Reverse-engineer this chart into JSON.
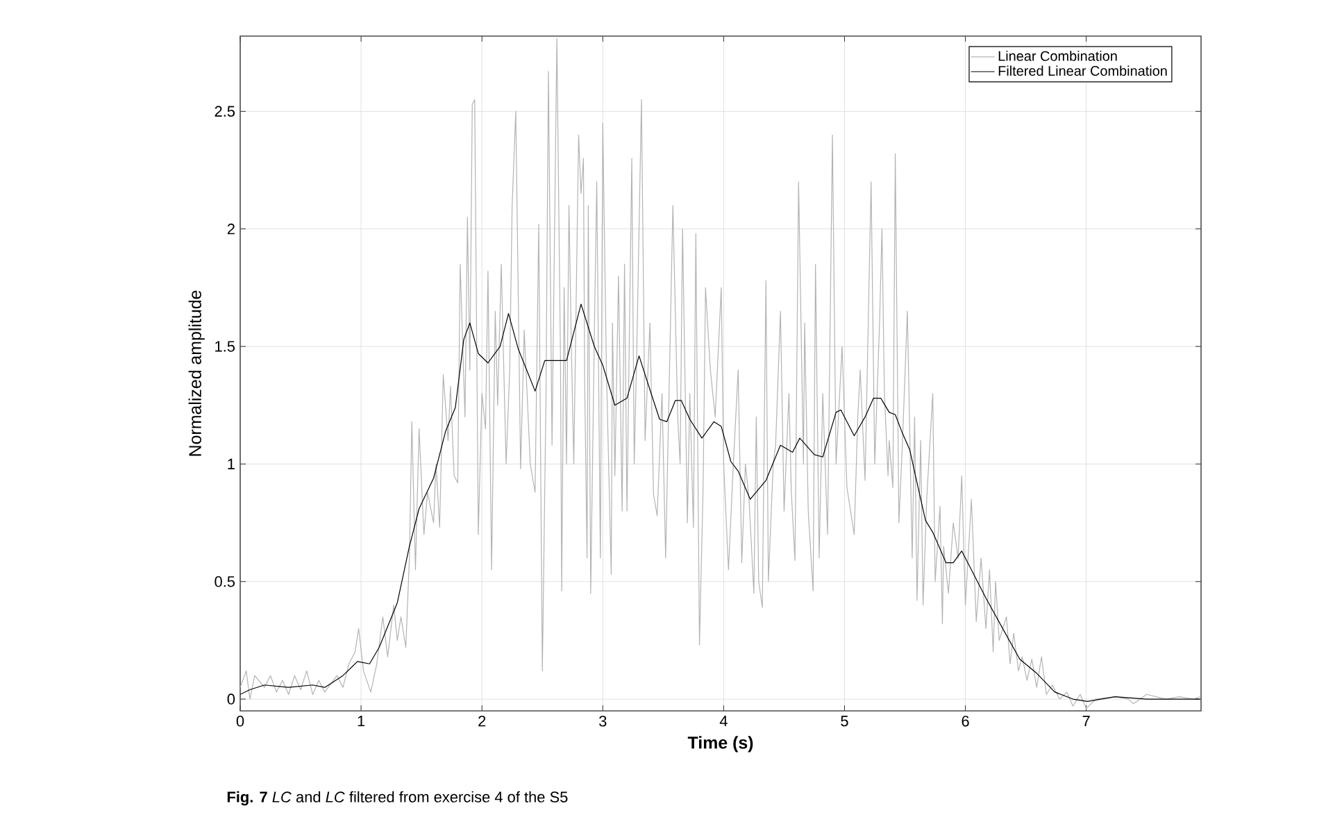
{
  "chart_data": {
    "type": "line",
    "xlabel": "Time (s)",
    "ylabel": "Normalized amplitude",
    "annotations": [
      "**Fig. 7** *LC* and *LC* filtered from exercise 4 of the S5"
    ],
    "xlim": [
      0,
      7.95
    ],
    "ylim": [
      -0.05,
      2.82
    ],
    "xticks": [
      0,
      1,
      2,
      3,
      4,
      5,
      6,
      7
    ],
    "yticks": [
      0,
      0.5,
      1,
      1.5,
      2,
      2.5
    ],
    "grid": true,
    "legend": "top right",
    "line_style": "solid",
    "marker": "none",
    "series": [
      {
        "name": "Linear Combination",
        "color": "#b3b3b3",
        "x": [
          0,
          0.05,
          0.08,
          0.12,
          0.2,
          0.25,
          0.3,
          0.35,
          0.4,
          0.45,
          0.5,
          0.55,
          0.6,
          0.65,
          0.7,
          0.8,
          0.85,
          0.9,
          0.95,
          0.98,
          1.02,
          1.08,
          1.13,
          1.18,
          1.22,
          1.27,
          1.3,
          1.33,
          1.37,
          1.4,
          1.42,
          1.45,
          1.48,
          1.52,
          1.55,
          1.6,
          1.62,
          1.65,
          1.68,
          1.72,
          1.74,
          1.77,
          1.8,
          1.82,
          1.86,
          1.88,
          1.9,
          1.92,
          1.94,
          1.97,
          2.0,
          2.03,
          2.05,
          2.08,
          2.11,
          2.13,
          2.16,
          2.2,
          2.23,
          2.25,
          2.28,
          2.32,
          2.35,
          2.4,
          2.44,
          2.47,
          2.5,
          2.53,
          2.55,
          2.58,
          2.62,
          2.65,
          2.66,
          2.68,
          2.7,
          2.72,
          2.74,
          2.76,
          2.8,
          2.82,
          2.84,
          2.85,
          2.87,
          2.88,
          2.9,
          2.93,
          2.95,
          2.98,
          3.0,
          3.03,
          3.07,
          3.08,
          3.1,
          3.13,
          3.16,
          3.18,
          3.2,
          3.24,
          3.26,
          3.28,
          3.32,
          3.35,
          3.39,
          3.42,
          3.45,
          3.49,
          3.52,
          3.58,
          3.62,
          3.64,
          3.66,
          3.7,
          3.72,
          3.75,
          3.77,
          3.8,
          3.83,
          3.85,
          3.89,
          3.93,
          3.98,
          4.0,
          4.04,
          4.08,
          4.12,
          4.15,
          4.18,
          4.21,
          4.25,
          4.27,
          4.29,
          4.32,
          4.35,
          4.37,
          4.41,
          4.43,
          4.47,
          4.5,
          4.54,
          4.56,
          4.59,
          4.62,
          4.66,
          4.67,
          4.7,
          4.74,
          4.76,
          4.79,
          4.82,
          4.86,
          4.9,
          4.93,
          4.98,
          5.02,
          5.05,
          5.08,
          5.11,
          5.13,
          5.17,
          5.22,
          5.25,
          5.29,
          5.31,
          5.33,
          5.36,
          5.37,
          5.4,
          5.42,
          5.45,
          5.48,
          5.52,
          5.56,
          5.58,
          5.6,
          5.63,
          5.65,
          5.68,
          5.73,
          5.75,
          5.79,
          5.81,
          5.82,
          5.86,
          5.9,
          5.94,
          5.97,
          6.0,
          6.05,
          6.09,
          6.13,
          6.17,
          6.2,
          6.23,
          6.25,
          6.28,
          6.34,
          6.37,
          6.4,
          6.44,
          6.47,
          6.51,
          6.55,
          6.59,
          6.63,
          6.67,
          6.72,
          6.78,
          6.84,
          6.89,
          6.95,
          7.0,
          7.08,
          7.24,
          7.35,
          7.39,
          7.5,
          7.66,
          7.77,
          7.89,
          7.94
        ],
        "values": [
          0.05,
          0.12,
          0.0,
          0.1,
          0.05,
          0.1,
          0.03,
          0.08,
          0.02,
          0.1,
          0.04,
          0.12,
          0.02,
          0.08,
          0.03,
          0.1,
          0.05,
          0.15,
          0.2,
          0.3,
          0.12,
          0.03,
          0.15,
          0.35,
          0.18,
          0.4,
          0.25,
          0.35,
          0.22,
          0.6,
          1.18,
          0.55,
          1.15,
          0.7,
          0.88,
          0.75,
          1.0,
          0.73,
          1.38,
          1.1,
          1.33,
          0.95,
          0.92,
          1.85,
          1.2,
          2.05,
          1.4,
          2.53,
          2.55,
          0.7,
          1.3,
          1.15,
          1.82,
          0.55,
          1.65,
          1.25,
          1.85,
          1.0,
          1.4,
          2.1,
          2.5,
          0.98,
          1.57,
          1.0,
          0.88,
          2.02,
          0.12,
          1.28,
          2.67,
          1.08,
          2.81,
          1.45,
          0.46,
          1.75,
          1.0,
          2.1,
          1.5,
          1.0,
          2.4,
          2.15,
          2.3,
          1.35,
          0.6,
          2.1,
          0.45,
          1.55,
          2.2,
          0.6,
          2.45,
          1.4,
          0.53,
          1.6,
          0.95,
          1.8,
          0.8,
          1.85,
          0.8,
          2.3,
          1.0,
          1.45,
          2.55,
          1.1,
          1.6,
          0.87,
          0.78,
          1.3,
          0.6,
          2.1,
          1.2,
          1.0,
          2.0,
          0.75,
          1.3,
          0.73,
          1.98,
          0.23,
          0.9,
          1.75,
          1.4,
          1.2,
          1.75,
          1.0,
          0.55,
          1.0,
          1.4,
          0.58,
          1.0,
          0.85,
          0.45,
          1.2,
          0.5,
          0.39,
          1.78,
          0.5,
          1.0,
          1.08,
          1.65,
          0.8,
          1.3,
          0.88,
          0.59,
          2.2,
          1.0,
          1.6,
          0.8,
          0.46,
          1.85,
          0.6,
          1.3,
          0.7,
          2.4,
          1.0,
          1.5,
          0.9,
          0.8,
          0.7,
          1.2,
          1.4,
          0.93,
          2.2,
          1.0,
          1.6,
          2.0,
          1.3,
          0.95,
          1.1,
          0.9,
          2.32,
          0.75,
          1.1,
          1.65,
          0.6,
          1.2,
          0.42,
          1.1,
          0.4,
          0.85,
          1.3,
          0.5,
          0.82,
          0.32,
          0.65,
          0.45,
          0.75,
          0.6,
          0.95,
          0.4,
          0.85,
          0.33,
          0.6,
          0.3,
          0.55,
          0.2,
          0.5,
          0.25,
          0.35,
          0.15,
          0.28,
          0.12,
          0.18,
          0.08,
          0.17,
          0.05,
          0.18,
          0.02,
          0.06,
          0.0,
          0.03,
          -0.03,
          0.02,
          -0.04,
          0.0,
          0.01,
          0.0,
          -0.02,
          0.02,
          0.0,
          0.01,
          0.0,
          0.01
        ]
      },
      {
        "name": "Filtered Linear Combination",
        "color": "#000000",
        "x": [
          0,
          0.08,
          0.2,
          0.4,
          0.6,
          0.7,
          0.85,
          0.97,
          1.07,
          1.15,
          1.3,
          1.4,
          1.48,
          1.6,
          1.7,
          1.78,
          1.85,
          1.9,
          1.97,
          2.05,
          2.15,
          2.22,
          2.3,
          2.44,
          2.52,
          2.6,
          2.66,
          2.7,
          2.82,
          2.93,
          3.0,
          3.1,
          3.2,
          3.3,
          3.4,
          3.47,
          3.53,
          3.6,
          3.65,
          3.72,
          3.82,
          3.92,
          3.98,
          4.06,
          4.12,
          4.22,
          4.35,
          4.47,
          4.57,
          4.63,
          4.75,
          4.82,
          4.93,
          4.97,
          5.08,
          5.17,
          5.24,
          5.3,
          5.37,
          5.42,
          5.48,
          5.54,
          5.6,
          5.67,
          5.73,
          5.84,
          5.9,
          5.97,
          6.03,
          6.17,
          6.32,
          6.45,
          6.59,
          6.74,
          6.89,
          7.01,
          7.24,
          7.5,
          7.94
        ],
        "values": [
          0.02,
          0.04,
          0.06,
          0.05,
          0.06,
          0.05,
          0.1,
          0.16,
          0.15,
          0.22,
          0.41,
          0.65,
          0.81,
          0.94,
          1.14,
          1.24,
          1.53,
          1.6,
          1.47,
          1.43,
          1.5,
          1.64,
          1.49,
          1.31,
          1.44,
          1.44,
          1.44,
          1.44,
          1.68,
          1.5,
          1.42,
          1.25,
          1.28,
          1.46,
          1.3,
          1.19,
          1.18,
          1.27,
          1.27,
          1.19,
          1.11,
          1.18,
          1.16,
          1.01,
          0.97,
          0.85,
          0.93,
          1.08,
          1.05,
          1.11,
          1.04,
          1.03,
          1.22,
          1.23,
          1.12,
          1.2,
          1.28,
          1.28,
          1.22,
          1.21,
          1.13,
          1.06,
          0.92,
          0.76,
          0.71,
          0.58,
          0.58,
          0.63,
          0.57,
          0.43,
          0.29,
          0.17,
          0.11,
          0.03,
          0.0,
          -0.01,
          0.01,
          0.0,
          0.0
        ]
      }
    ]
  }
}
